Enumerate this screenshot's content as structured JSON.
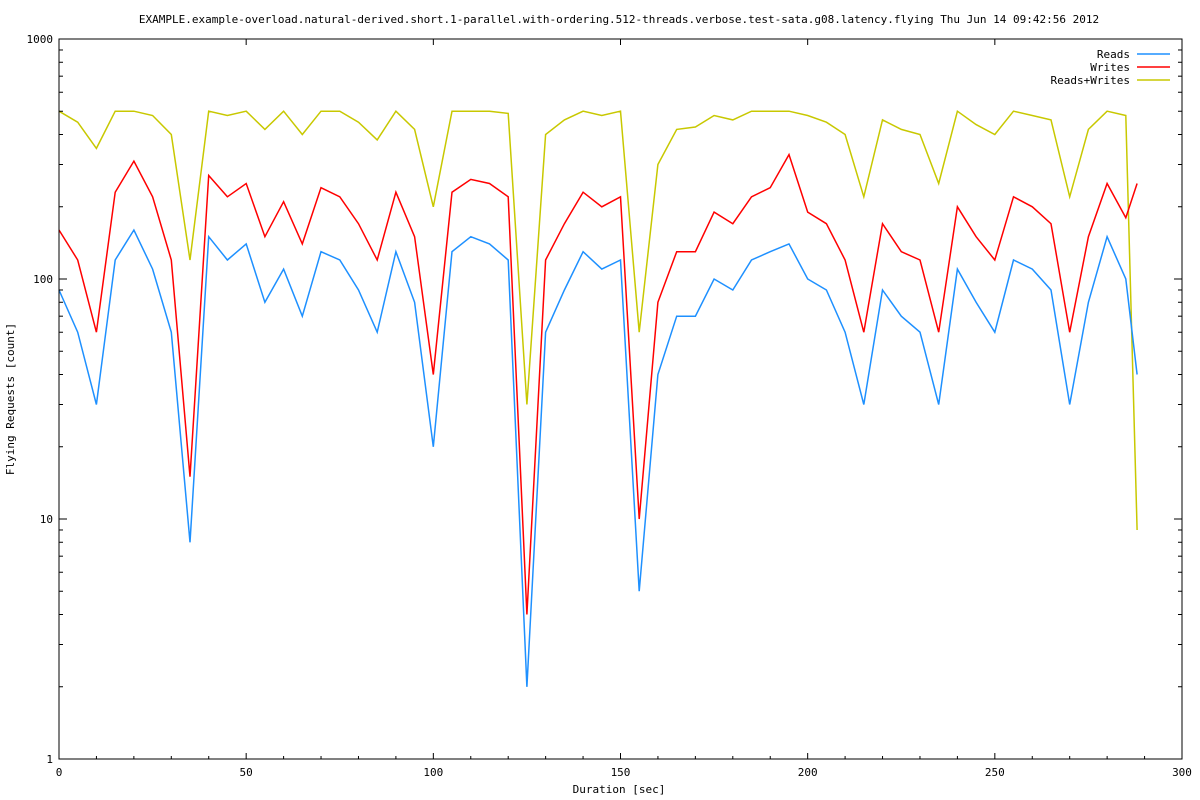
{
  "chart_data": {
    "type": "line",
    "title": "EXAMPLE.example-overload.natural-derived.short.1-parallel.with-ordering.512-threads.verbose.test-sata.g08.latency.flying Thu Jun 14 09:42:56 2012",
    "xlabel": "Duration [sec]",
    "ylabel": "Flying Requests [count]",
    "xlim": [
      0,
      300
    ],
    "ylim": [
      1,
      1000
    ],
    "yscale": "log",
    "x_ticks": [
      "0",
      "50",
      "100",
      "150",
      "200",
      "250",
      "300"
    ],
    "y_ticks": [
      "1",
      "10",
      "100",
      "1000"
    ],
    "grid": false,
    "legend_position": "top-right",
    "series": [
      {
        "name": "Reads",
        "color": "#1e90ff",
        "x": [
          0,
          5,
          10,
          15,
          20,
          25,
          30,
          35,
          40,
          45,
          50,
          55,
          60,
          65,
          70,
          75,
          80,
          85,
          90,
          95,
          100,
          105,
          110,
          115,
          120,
          125,
          130,
          135,
          140,
          145,
          150,
          155,
          160,
          165,
          170,
          175,
          180,
          185,
          190,
          195,
          200,
          205,
          210,
          215,
          220,
          225,
          230,
          235,
          240,
          245,
          250,
          255,
          260,
          265,
          270,
          275,
          280,
          285,
          288
        ],
        "y": [
          90,
          60,
          30,
          120,
          160,
          110,
          60,
          8,
          150,
          120,
          140,
          80,
          110,
          70,
          130,
          120,
          90,
          60,
          130,
          80,
          20,
          130,
          150,
          140,
          120,
          2,
          60,
          90,
          130,
          110,
          120,
          5,
          40,
          70,
          70,
          100,
          90,
          120,
          130,
          140,
          100,
          90,
          60,
          30,
          90,
          70,
          60,
          30,
          110,
          80,
          60,
          120,
          110,
          90,
          30,
          80,
          150,
          100,
          40
        ]
      },
      {
        "name": "Writes",
        "color": "#ff0000",
        "x": [
          0,
          5,
          10,
          15,
          20,
          25,
          30,
          35,
          40,
          45,
          50,
          55,
          60,
          65,
          70,
          75,
          80,
          85,
          90,
          95,
          100,
          105,
          110,
          115,
          120,
          125,
          130,
          135,
          140,
          145,
          150,
          155,
          160,
          165,
          170,
          175,
          180,
          185,
          190,
          195,
          200,
          205,
          210,
          215,
          220,
          225,
          230,
          235,
          240,
          245,
          250,
          255,
          260,
          265,
          270,
          275,
          280,
          285,
          288
        ],
        "y": [
          160,
          120,
          60,
          230,
          310,
          220,
          120,
          15,
          270,
          220,
          250,
          150,
          210,
          140,
          240,
          220,
          170,
          120,
          230,
          150,
          40,
          230,
          260,
          250,
          220,
          4,
          120,
          170,
          230,
          200,
          220,
          10,
          80,
          130,
          130,
          190,
          170,
          220,
          240,
          330,
          190,
          170,
          120,
          60,
          170,
          130,
          120,
          60,
          200,
          150,
          120,
          220,
          200,
          170,
          60,
          150,
          250,
          180,
          250
        ]
      },
      {
        "name": "Reads+Writes",
        "color": "#c8c800",
        "x": [
          0,
          5,
          10,
          15,
          20,
          25,
          30,
          35,
          40,
          45,
          50,
          55,
          60,
          65,
          70,
          75,
          80,
          85,
          90,
          95,
          100,
          105,
          110,
          115,
          120,
          125,
          130,
          135,
          140,
          145,
          150,
          155,
          160,
          165,
          170,
          175,
          180,
          185,
          190,
          195,
          200,
          205,
          210,
          215,
          220,
          225,
          230,
          235,
          240,
          245,
          250,
          255,
          260,
          265,
          270,
          275,
          280,
          285,
          288
        ],
        "y": [
          500,
          450,
          350,
          500,
          500,
          480,
          400,
          120,
          500,
          480,
          500,
          420,
          500,
          400,
          500,
          500,
          450,
          380,
          500,
          420,
          200,
          500,
          500,
          500,
          490,
          30,
          400,
          460,
          500,
          480,
          500,
          60,
          300,
          420,
          430,
          480,
          460,
          500,
          500,
          500,
          480,
          450,
          400,
          220,
          460,
          420,
          400,
          250,
          500,
          440,
          400,
          500,
          480,
          460,
          220,
          420,
          500,
          480,
          9
        ]
      }
    ]
  }
}
